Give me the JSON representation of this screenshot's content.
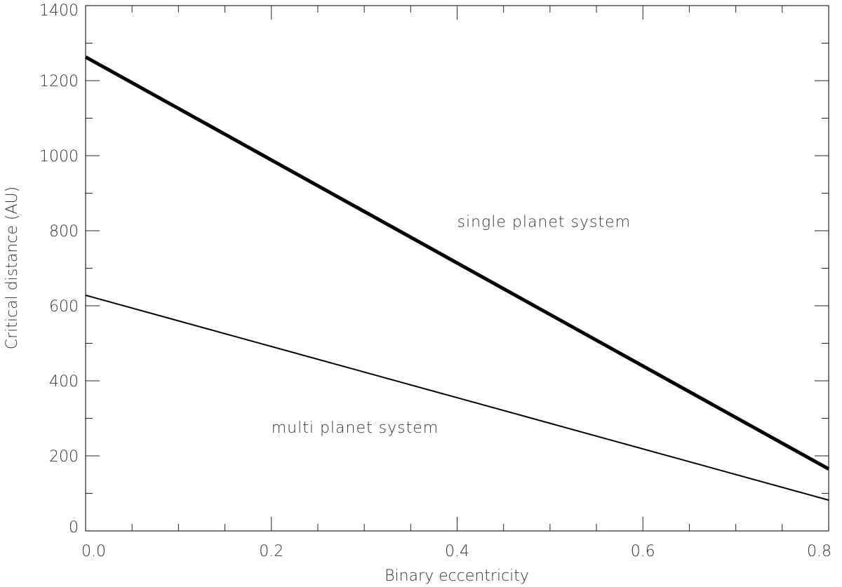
{
  "chart_data": {
    "type": "line",
    "title": "",
    "xlabel": "Binary eccentricity",
    "ylabel": "Critical distance (AU)",
    "xlim": [
      0.0,
      0.8
    ],
    "ylim": [
      0,
      1400
    ],
    "xticks": [
      0.0,
      0.2,
      0.4,
      0.6,
      0.8
    ],
    "xtick_labels": [
      "0.0",
      "0.2",
      "0.4",
      "0.6",
      "0.8"
    ],
    "yticks": [
      0,
      200,
      400,
      600,
      800,
      1000,
      1200,
      1400
    ],
    "ytick_labels": [
      "0",
      "200",
      "400",
      "600",
      "800",
      "1000",
      "1200",
      "1400"
    ],
    "grid": false,
    "legend": "none",
    "series": [
      {
        "x": [
          0.0,
          0.8
        ],
        "y": [
          1263,
          165
        ],
        "color": "#000000"
      },
      {
        "x": [
          0.0,
          0.8
        ],
        "y": [
          628,
          82
        ],
        "color": "#000000"
      }
    ],
    "annotations": [
      {
        "text": "single planet system",
        "x": 0.4,
        "y": 810
      },
      {
        "text": "multi planet system",
        "x": 0.2,
        "y": 262
      }
    ]
  }
}
